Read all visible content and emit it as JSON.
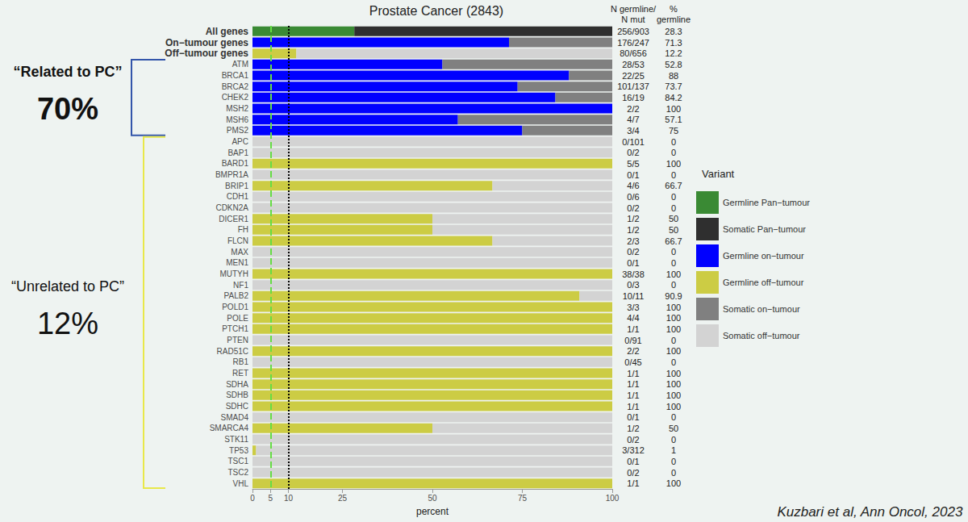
{
  "chart_data": {
    "type": "bar",
    "orientation": "horizontal",
    "stacked": true,
    "title": "Prostate Cancer (2843)",
    "categories": [
      "All genes",
      "On−tumour genes",
      "Off−tumour genes",
      "ATM",
      "BRCA1",
      "BRCA2",
      "CHEK2",
      "MSH2",
      "MSH6",
      "PMS2",
      "APC",
      "BAP1",
      "BARD1",
      "BMPR1A",
      "BRIP1",
      "CDH1",
      "CDKN2A",
      "DICER1",
      "FH",
      "FLCN",
      "MAX",
      "MEN1",
      "MUTYH",
      "NF1",
      "PALB2",
      "POLD1",
      "POLE",
      "PTCH1",
      "PTEN",
      "RAD51C",
      "RB1",
      "RET",
      "SDHA",
      "SDHB",
      "SDHC",
      "SMAD4",
      "SMARCA4",
      "STK11",
      "TP53",
      "TSC1",
      "TSC2",
      "VHL"
    ],
    "xlim": [
      0,
      100
    ],
    "xticks": [
      0,
      5,
      10,
      25,
      50,
      75,
      100
    ],
    "xlabel": "percent",
    "grid": false,
    "legend": "right",
    "legend_title": "Variant",
    "series": [
      {
        "name": "Germline Pan−tumour",
        "color": "#3a8a34",
        "values": [
          28.3,
          null,
          null,
          null,
          null,
          null,
          null,
          null,
          null,
          null,
          null,
          null,
          null,
          null,
          null,
          null,
          null,
          null,
          null,
          null,
          null,
          null,
          null,
          null,
          null,
          null,
          null,
          null,
          null,
          null,
          null,
          null,
          null,
          null,
          null,
          null,
          null,
          null,
          null,
          null,
          null,
          null
        ]
      },
      {
        "name": "Somatic Pan−tumour",
        "color": "#2f2f2f",
        "values": [
          71.7,
          null,
          null,
          null,
          null,
          null,
          null,
          null,
          null,
          null,
          null,
          null,
          null,
          null,
          null,
          null,
          null,
          null,
          null,
          null,
          null,
          null,
          null,
          null,
          null,
          null,
          null,
          null,
          null,
          null,
          null,
          null,
          null,
          null,
          null,
          null,
          null,
          null,
          null,
          null,
          null,
          null
        ]
      },
      {
        "name": "Germline on−tumour",
        "color": "#0000ff",
        "values": [
          null,
          71.3,
          null,
          52.8,
          88,
          73.7,
          84.2,
          100,
          57.1,
          75,
          null,
          null,
          null,
          null,
          null,
          null,
          null,
          null,
          null,
          null,
          null,
          null,
          null,
          null,
          null,
          null,
          null,
          null,
          null,
          null,
          null,
          null,
          null,
          null,
          null,
          null,
          null,
          null,
          null,
          null,
          null,
          null
        ]
      },
      {
        "name": "Germline off−tumour",
        "color": "#cccc44",
        "values": [
          null,
          null,
          12.2,
          null,
          null,
          null,
          null,
          null,
          null,
          null,
          0,
          0,
          100,
          0,
          66.7,
          0,
          0,
          50,
          50,
          66.7,
          0,
          0,
          100,
          0,
          90.9,
          100,
          100,
          100,
          0,
          100,
          0,
          100,
          100,
          100,
          100,
          0,
          50,
          0,
          1,
          0,
          0,
          100
        ]
      },
      {
        "name": "Somatic on−tumour",
        "color": "#808080",
        "values": [
          null,
          28.7,
          null,
          47.2,
          12,
          26.3,
          15.8,
          0,
          42.9,
          25,
          null,
          null,
          null,
          null,
          null,
          null,
          null,
          null,
          null,
          null,
          null,
          null,
          null,
          null,
          null,
          null,
          null,
          null,
          null,
          null,
          null,
          null,
          null,
          null,
          null,
          null,
          null,
          null,
          null,
          null,
          null,
          null
        ]
      },
      {
        "name": "Somatic off−tumour",
        "color": "#d3d3d3",
        "values": [
          null,
          null,
          87.8,
          null,
          null,
          null,
          null,
          null,
          null,
          null,
          100,
          100,
          0,
          100,
          33.3,
          100,
          100,
          50,
          50,
          33.3,
          100,
          100,
          0,
          100,
          9.1,
          0,
          0,
          0,
          100,
          0,
          100,
          0,
          0,
          0,
          0,
          100,
          50,
          100,
          99,
          100,
          100,
          0
        ]
      }
    ],
    "reference_lines": [
      {
        "value": 5,
        "color": "#66dd44",
        "line_style": "dashed"
      },
      {
        "value": 10,
        "color": "#000000",
        "line_style": "dotted"
      }
    ],
    "table": {
      "headers": [
        [
          "N germline/",
          "N mut"
        ],
        [
          "%",
          "germline"
        ]
      ],
      "n_ratio": [
        "256/903",
        "176/247",
        "80/656",
        "28/53",
        "22/25",
        "101/137",
        "16/19",
        "2/2",
        "4/7",
        "3/4",
        "0/101",
        "0/2",
        "5/5",
        "0/1",
        "4/6",
        "0/6",
        "0/2",
        "1/2",
        "1/2",
        "2/3",
        "0/2",
        "0/1",
        "38/38",
        "0/3",
        "10/11",
        "3/3",
        "4/4",
        "1/1",
        "0/91",
        "2/2",
        "0/45",
        "1/1",
        "1/1",
        "1/1",
        "1/1",
        "0/1",
        "1/2",
        "0/2",
        "3/312",
        "0/1",
        "0/2",
        "1/1"
      ],
      "pct_germline": [
        28.3,
        71.3,
        12.2,
        52.8,
        88,
        73.7,
        84.2,
        100,
        57.1,
        75,
        0,
        0,
        100,
        0,
        66.7,
        0,
        0,
        50,
        50,
        66.7,
        0,
        0,
        100,
        0,
        90.9,
        100,
        100,
        100,
        0,
        100,
        0,
        100,
        100,
        100,
        100,
        0,
        50,
        0,
        1,
        0,
        0,
        100
      ]
    },
    "annotations": [
      {
        "text": [
          "“Related to PC”",
          "70%"
        ],
        "span": [
          "ATM",
          "PMS2"
        ],
        "color": "#3355aa"
      },
      {
        "text": [
          "“Unrelated to PC”",
          "12%"
        ],
        "span": [
          "APC",
          "VHL"
        ],
        "color": "#e8e84a"
      }
    ],
    "source": "Kuzbari et al, Ann Oncol, 2023"
  }
}
